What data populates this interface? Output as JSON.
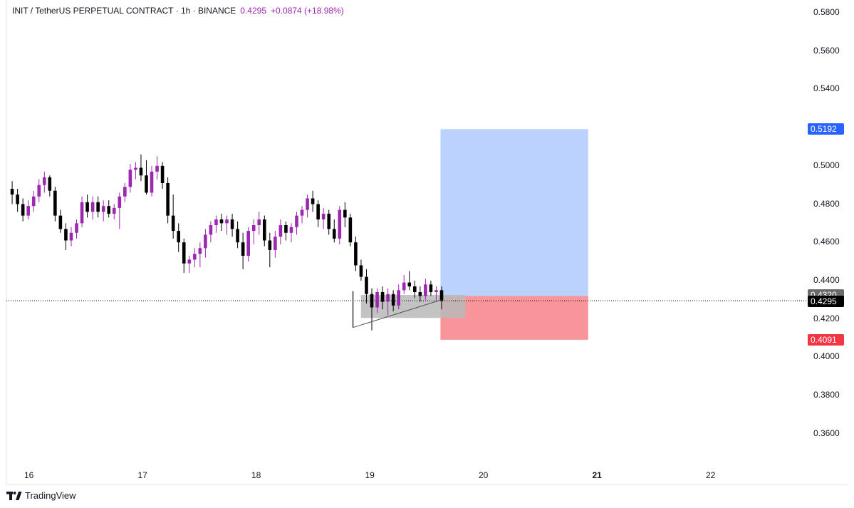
{
  "header": {
    "symbol": "INIT / TetherUS PERPETUAL CONTRACT · 1h · BINANCE",
    "price": "0.4295",
    "change": "+0.0874 (+18.98%)"
  },
  "brand": {
    "name": "TradingView",
    "icon": "tradingview-logo-icon"
  },
  "colors": {
    "bull": "#9c27b0",
    "bear": "#000000",
    "target": "#bbd2ff",
    "stop": "#f7959a",
    "entry_box": "#b8b8b8",
    "target_tag": "#2962ff",
    "stop_tag": "#f23645",
    "last_tag": "#000000",
    "entry_tag": "#6b6b6b"
  },
  "chart_data": {
    "type": "candlestick",
    "symbol": "INIT / TetherUS PERPETUAL CONTRACT",
    "interval": "1h",
    "exchange": "BINANCE",
    "ylim": [
      0.352,
      0.585
    ],
    "yticks": [
      "0.5800",
      "0.5600",
      "0.5400",
      "0.5000",
      "0.4800",
      "0.4600",
      "0.4400",
      "0.4200",
      "0.4000",
      "0.3800",
      "0.3600"
    ],
    "xticks": [
      {
        "label": "16",
        "day": 16,
        "bold": false
      },
      {
        "label": "17",
        "day": 17,
        "bold": false
      },
      {
        "label": "18",
        "day": 18,
        "bold": false
      },
      {
        "label": "19",
        "day": 19,
        "bold": false
      },
      {
        "label": "20",
        "day": 20,
        "bold": false
      },
      {
        "label": "21",
        "day": 21,
        "bold": true
      },
      {
        "label": "22",
        "day": 22,
        "bold": false
      }
    ],
    "start_day": 15.85,
    "candles": [
      [
        0.488,
        0.492,
        0.48,
        0.485
      ],
      [
        0.485,
        0.488,
        0.476,
        0.48
      ],
      [
        0.48,
        0.483,
        0.471,
        0.474
      ],
      [
        0.474,
        0.482,
        0.472,
        0.479
      ],
      [
        0.479,
        0.487,
        0.476,
        0.484
      ],
      [
        0.484,
        0.493,
        0.481,
        0.49
      ],
      [
        0.49,
        0.497,
        0.486,
        0.494
      ],
      [
        0.494,
        0.495,
        0.484,
        0.487
      ],
      [
        0.487,
        0.489,
        0.471,
        0.474
      ],
      [
        0.474,
        0.477,
        0.465,
        0.467
      ],
      [
        0.467,
        0.47,
        0.456,
        0.461
      ],
      [
        0.461,
        0.468,
        0.458,
        0.465
      ],
      [
        0.465,
        0.472,
        0.462,
        0.47
      ],
      [
        0.47,
        0.484,
        0.468,
        0.481
      ],
      [
        0.481,
        0.485,
        0.473,
        0.476
      ],
      [
        0.476,
        0.484,
        0.472,
        0.481
      ],
      [
        0.481,
        0.484,
        0.473,
        0.476
      ],
      [
        0.476,
        0.482,
        0.471,
        0.479
      ],
      [
        0.479,
        0.482,
        0.473,
        0.475
      ],
      [
        0.475,
        0.48,
        0.472,
        0.478
      ],
      [
        0.478,
        0.486,
        0.467,
        0.484
      ],
      [
        0.484,
        0.491,
        0.481,
        0.489
      ],
      [
        0.489,
        0.501,
        0.486,
        0.498
      ],
      [
        0.498,
        0.502,
        0.493,
        0.499
      ],
      [
        0.499,
        0.506,
        0.492,
        0.495
      ],
      [
        0.495,
        0.503,
        0.485,
        0.486
      ],
      [
        0.486,
        0.5,
        0.484,
        0.497
      ],
      [
        0.497,
        0.505,
        0.493,
        0.5
      ],
      [
        0.5,
        0.502,
        0.488,
        0.491
      ],
      [
        0.491,
        0.494,
        0.47,
        0.474
      ],
      [
        0.474,
        0.485,
        0.462,
        0.466
      ],
      [
        0.466,
        0.47,
        0.455,
        0.46
      ],
      [
        0.46,
        0.462,
        0.444,
        0.449
      ],
      [
        0.449,
        0.453,
        0.444,
        0.451
      ],
      [
        0.451,
        0.457,
        0.447,
        0.454
      ],
      [
        0.454,
        0.46,
        0.447,
        0.457
      ],
      [
        0.457,
        0.467,
        0.452,
        0.464
      ],
      [
        0.464,
        0.471,
        0.46,
        0.469
      ],
      [
        0.469,
        0.474,
        0.465,
        0.472
      ],
      [
        0.472,
        0.475,
        0.466,
        0.47
      ],
      [
        0.47,
        0.474,
        0.464,
        0.472
      ],
      [
        0.472,
        0.475,
        0.463,
        0.467
      ],
      [
        0.467,
        0.471,
        0.457,
        0.46
      ],
      [
        0.46,
        0.465,
        0.446,
        0.453
      ],
      [
        0.453,
        0.468,
        0.45,
        0.466
      ],
      [
        0.466,
        0.472,
        0.459,
        0.469
      ],
      [
        0.469,
        0.476,
        0.464,
        0.472
      ],
      [
        0.472,
        0.474,
        0.458,
        0.461
      ],
      [
        0.461,
        0.465,
        0.447,
        0.456
      ],
      [
        0.456,
        0.466,
        0.452,
        0.463
      ],
      [
        0.463,
        0.472,
        0.459,
        0.469
      ],
      [
        0.469,
        0.471,
        0.461,
        0.465
      ],
      [
        0.465,
        0.47,
        0.46,
        0.468
      ],
      [
        0.468,
        0.476,
        0.464,
        0.474
      ],
      [
        0.474,
        0.479,
        0.47,
        0.477
      ],
      [
        0.477,
        0.485,
        0.473,
        0.483
      ],
      [
        0.483,
        0.487,
        0.476,
        0.48
      ],
      [
        0.48,
        0.482,
        0.468,
        0.472
      ],
      [
        0.472,
        0.478,
        0.467,
        0.475
      ],
      [
        0.475,
        0.477,
        0.464,
        0.467
      ],
      [
        0.467,
        0.472,
        0.46,
        0.462
      ],
      [
        0.462,
        0.479,
        0.459,
        0.477
      ],
      [
        0.477,
        0.481,
        0.468,
        0.473
      ],
      [
        0.473,
        0.475,
        0.458,
        0.46
      ],
      [
        0.46,
        0.463,
        0.445,
        0.448
      ],
      [
        0.448,
        0.451,
        0.44,
        0.442
      ],
      [
        0.442,
        0.446,
        0.428,
        0.433
      ],
      [
        0.433,
        0.436,
        0.414,
        0.426
      ],
      [
        0.426,
        0.436,
        0.423,
        0.434
      ],
      [
        0.434,
        0.437,
        0.425,
        0.429
      ],
      [
        0.429,
        0.436,
        0.422,
        0.433
      ],
      [
        0.433,
        0.435,
        0.424,
        0.427
      ],
      [
        0.427,
        0.438,
        0.425,
        0.435
      ],
      [
        0.435,
        0.443,
        0.433,
        0.439
      ],
      [
        0.439,
        0.445,
        0.435,
        0.437
      ],
      [
        0.437,
        0.44,
        0.431,
        0.434
      ],
      [
        0.434,
        0.437,
        0.429,
        0.432
      ],
      [
        0.432,
        0.441,
        0.43,
        0.438
      ],
      [
        0.438,
        0.44,
        0.432,
        0.434
      ],
      [
        0.434,
        0.437,
        0.429,
        0.435
      ],
      [
        0.435,
        0.437,
        0.425,
        0.4295
      ]
    ],
    "position": {
      "side": "long",
      "entry": 0.432,
      "target": 0.5192,
      "stop": 0.4091,
      "from_day": 19.62,
      "to_day": 20.92
    },
    "entry_zone": {
      "top": 0.4325,
      "bottom": 0.4205,
      "from_day": 18.92,
      "to_day": 19.84
    },
    "trendline": {
      "from": {
        "day": 18.85,
        "price": 0.4155
      },
      "to": {
        "day": 19.63,
        "price": 0.43
      }
    },
    "last_price_line": 0.4295,
    "price_tags": [
      {
        "label": "0.5192",
        "value": 0.5192,
        "kind": "target"
      },
      {
        "label": "0.4320",
        "value": 0.432,
        "kind": "entry"
      },
      {
        "label": "0.4295",
        "value": 0.4295,
        "kind": "last"
      },
      {
        "label": "0.4091",
        "value": 0.4091,
        "kind": "stop"
      }
    ]
  }
}
